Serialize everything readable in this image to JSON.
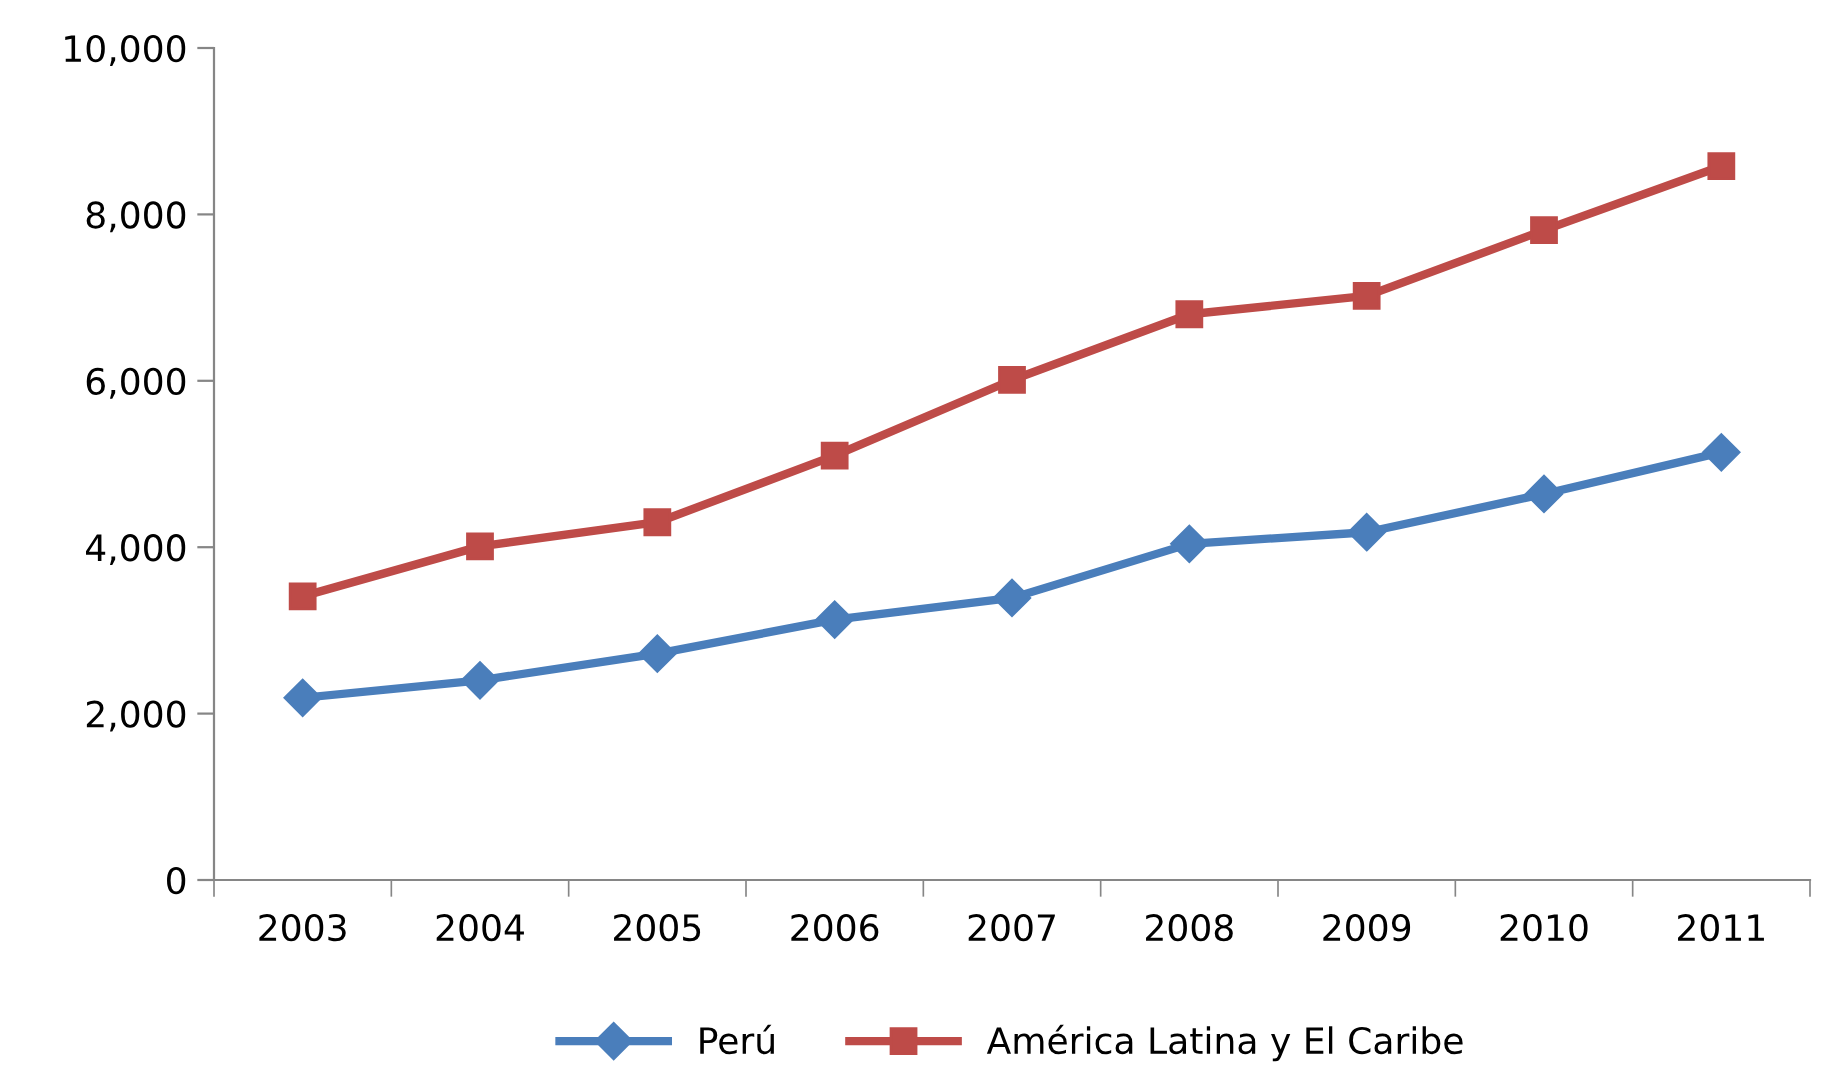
{
  "chart_data": {
    "type": "line",
    "categories": [
      "2003",
      "2004",
      "2005",
      "2006",
      "2007",
      "2008",
      "2009",
      "2010",
      "2011"
    ],
    "series": [
      {
        "name": "Perú",
        "color": "#4a7ebb",
        "marker": "diamond",
        "values": [
          2190,
          2400,
          2720,
          3130,
          3390,
          4040,
          4180,
          4640,
          5140
        ]
      },
      {
        "name": "América Latina y El Caribe",
        "color": "#be4b48",
        "marker": "square",
        "values": [
          3410,
          4010,
          4300,
          5100,
          6010,
          6800,
          7020,
          7810,
          8580
        ]
      }
    ],
    "ylim": [
      0,
      10000
    ],
    "yticks": [
      {
        "value": 0,
        "label": "0"
      },
      {
        "value": 2000,
        "label": "2,000"
      },
      {
        "value": 4000,
        "label": "4,000"
      },
      {
        "value": 6000,
        "label": "6,000"
      },
      {
        "value": 8000,
        "label": "8,000"
      },
      {
        "value": 10000,
        "label": "10,000"
      }
    ],
    "grid": false,
    "legend": "bottom",
    "line_style": "solid"
  }
}
